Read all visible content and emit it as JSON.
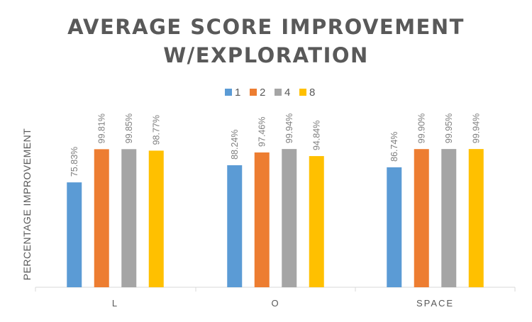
{
  "chart_data": {
    "type": "bar",
    "title": "AVERAGE SCORE IMPROVEMENT W/EXPLORATION",
    "title_lines": [
      "AVERAGE SCORE IMPROVEMENT",
      "W/EXPLORATION"
    ],
    "xlabel": "",
    "ylabel": "PERCENTAGE IMPROVEMENT",
    "categories": [
      "L",
      "O",
      "SPACE"
    ],
    "series": [
      {
        "name": "1",
        "color": "#5B9BD5",
        "values": [
          75.83,
          88.24,
          86.74
        ],
        "labels": [
          "75.83%",
          "88.24%",
          "86.74%"
        ]
      },
      {
        "name": "2",
        "color": "#ED7D31",
        "values": [
          99.81,
          97.46,
          99.9
        ],
        "labels": [
          "99.81%",
          "97.46%",
          "99.90%"
        ]
      },
      {
        "name": "4",
        "color": "#A5A5A5",
        "values": [
          99.85,
          99.94,
          99.95
        ],
        "labels": [
          "99.85%",
          "99.94%",
          "99.95%"
        ]
      },
      {
        "name": "8",
        "color": "#FFC000",
        "values": [
          98.77,
          94.84,
          99.94
        ],
        "labels": [
          "98.77%",
          "94.84%",
          "99.94%"
        ]
      }
    ],
    "ylim": [
      0,
      100
    ],
    "legend_position": "top",
    "grid": false,
    "data_labels": "rotated-above-bars"
  }
}
